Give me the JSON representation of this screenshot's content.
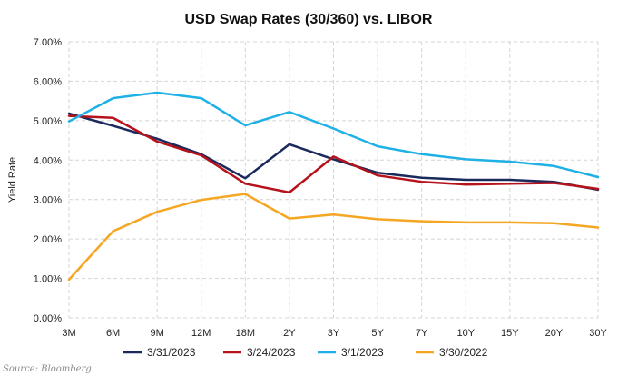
{
  "chart_data": {
    "type": "line",
    "title": "USD Swap Rates (30/360) vs. LIBOR",
    "xlabel": "",
    "ylabel": "Yield Rate",
    "categories": [
      "3M",
      "6M",
      "9M",
      "12M",
      "18M",
      "2Y",
      "3Y",
      "5Y",
      "7Y",
      "10Y",
      "15Y",
      "20Y",
      "30Y"
    ],
    "ylim": [
      0,
      7
    ],
    "yticks": [
      "0.00%",
      "1.00%",
      "2.00%",
      "3.00%",
      "4.00%",
      "5.00%",
      "6.00%",
      "7.00%"
    ],
    "grid": "dashed",
    "legend_position": "bottom",
    "series": [
      {
        "name": "3/31/2023",
        "color": "#1b2a5c",
        "values": [
          5.18,
          4.87,
          4.54,
          4.15,
          3.54,
          4.4,
          4.02,
          3.68,
          3.55,
          3.5,
          3.5,
          3.45,
          3.25
        ]
      },
      {
        "name": "3/24/2023",
        "color": "#b5121b",
        "values": [
          5.12,
          5.07,
          4.47,
          4.12,
          3.4,
          3.18,
          4.09,
          3.61,
          3.45,
          3.38,
          3.4,
          3.42,
          3.27
        ]
      },
      {
        "name": "3/1/2023",
        "color": "#1fb0e6",
        "values": [
          4.98,
          5.57,
          5.71,
          5.57,
          4.88,
          5.22,
          4.8,
          4.35,
          4.15,
          4.02,
          3.96,
          3.85,
          3.57
        ]
      },
      {
        "name": "3/30/2022",
        "color": "#f5a623",
        "values": [
          0.97,
          2.2,
          2.69,
          2.99,
          3.14,
          2.52,
          2.62,
          2.5,
          2.45,
          2.42,
          2.42,
          2.4,
          2.29
        ]
      }
    ],
    "source": "Source: Bloomberg"
  }
}
